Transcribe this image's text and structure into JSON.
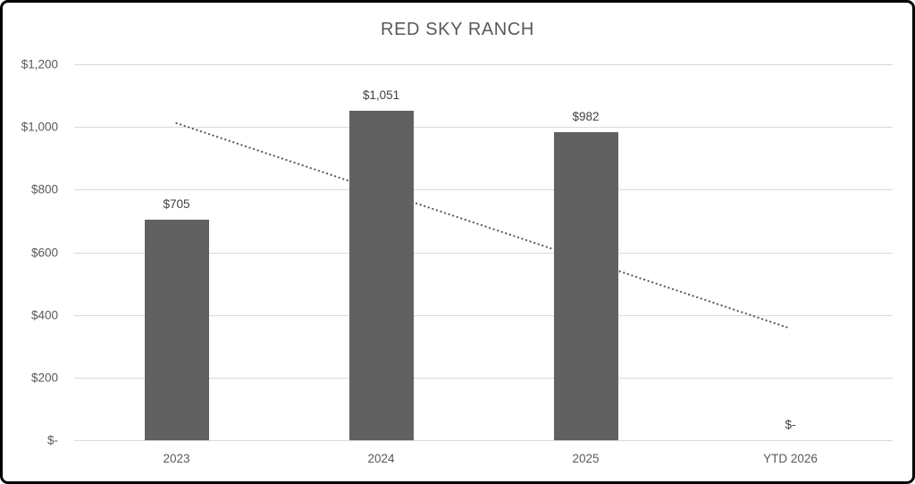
{
  "window": {
    "background_color": "#ffffff",
    "border_color": "#000000"
  },
  "chart_data": {
    "type": "bar",
    "title": "RED SKY RANCH",
    "title_color": "#595959",
    "categories": [
      "2023",
      "2024",
      "2025",
      "YTD 2026"
    ],
    "values": [
      705,
      1051,
      982,
      0
    ],
    "data_labels": [
      "$705",
      "$1,051",
      "$982",
      "$-"
    ],
    "data_label_color": "#404040",
    "y_ticks": [
      "$1,200",
      "$1,000",
      "$800",
      "$600",
      "$400",
      "$200",
      "$-"
    ],
    "y_tick_values": [
      1200,
      1000,
      800,
      600,
      400,
      200,
      0
    ],
    "ylim": [
      0,
      1200
    ],
    "xlabel": "",
    "ylabel": "",
    "grid": true,
    "legend": "none",
    "bar_color": "#616161",
    "gridline_color": "#d9d9d9",
    "axis_text_color": "#595959",
    "trendline": {
      "type": "linear",
      "style": "dotted",
      "color": "#595959",
      "start_value": 1012,
      "end_value": 357,
      "behind_bars": true
    }
  }
}
